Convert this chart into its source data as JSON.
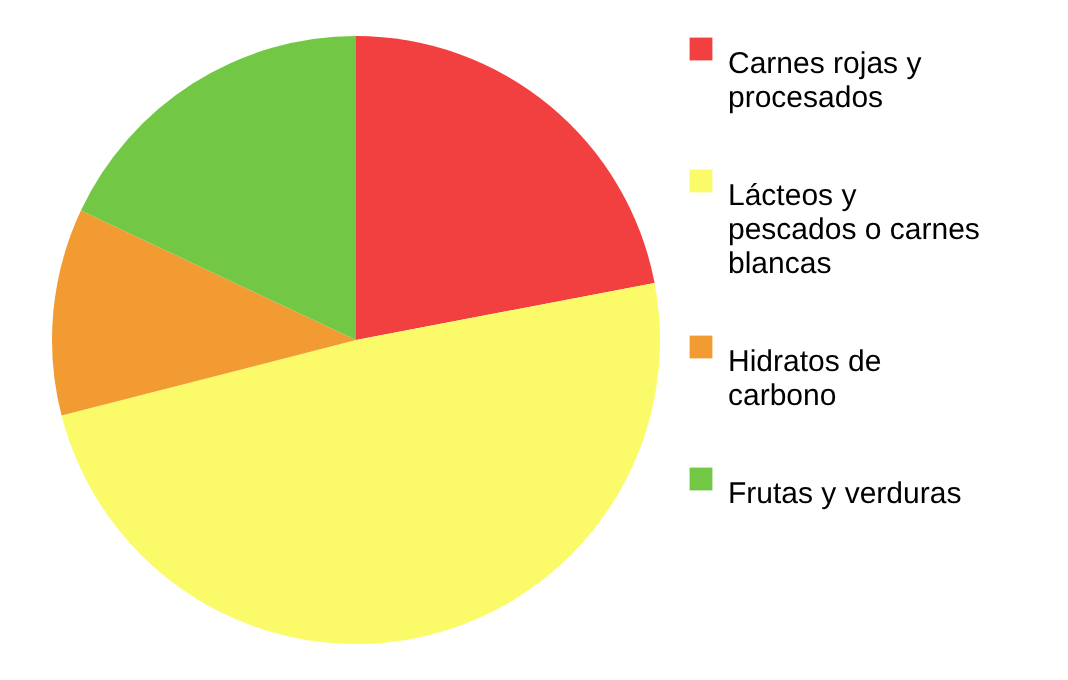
{
  "chart_data": {
    "type": "pie",
    "categories": [
      "Carnes rojas y procesados",
      "Lácteos y pescados o carnes blancas",
      "Hidratos de carbono",
      "Frutas y verduras"
    ],
    "values": [
      22,
      49,
      11,
      18
    ],
    "colors": [
      "#f23f3f",
      "#fbfb6a",
      "#f29b32",
      "#72c845"
    ],
    "legend": "right"
  }
}
